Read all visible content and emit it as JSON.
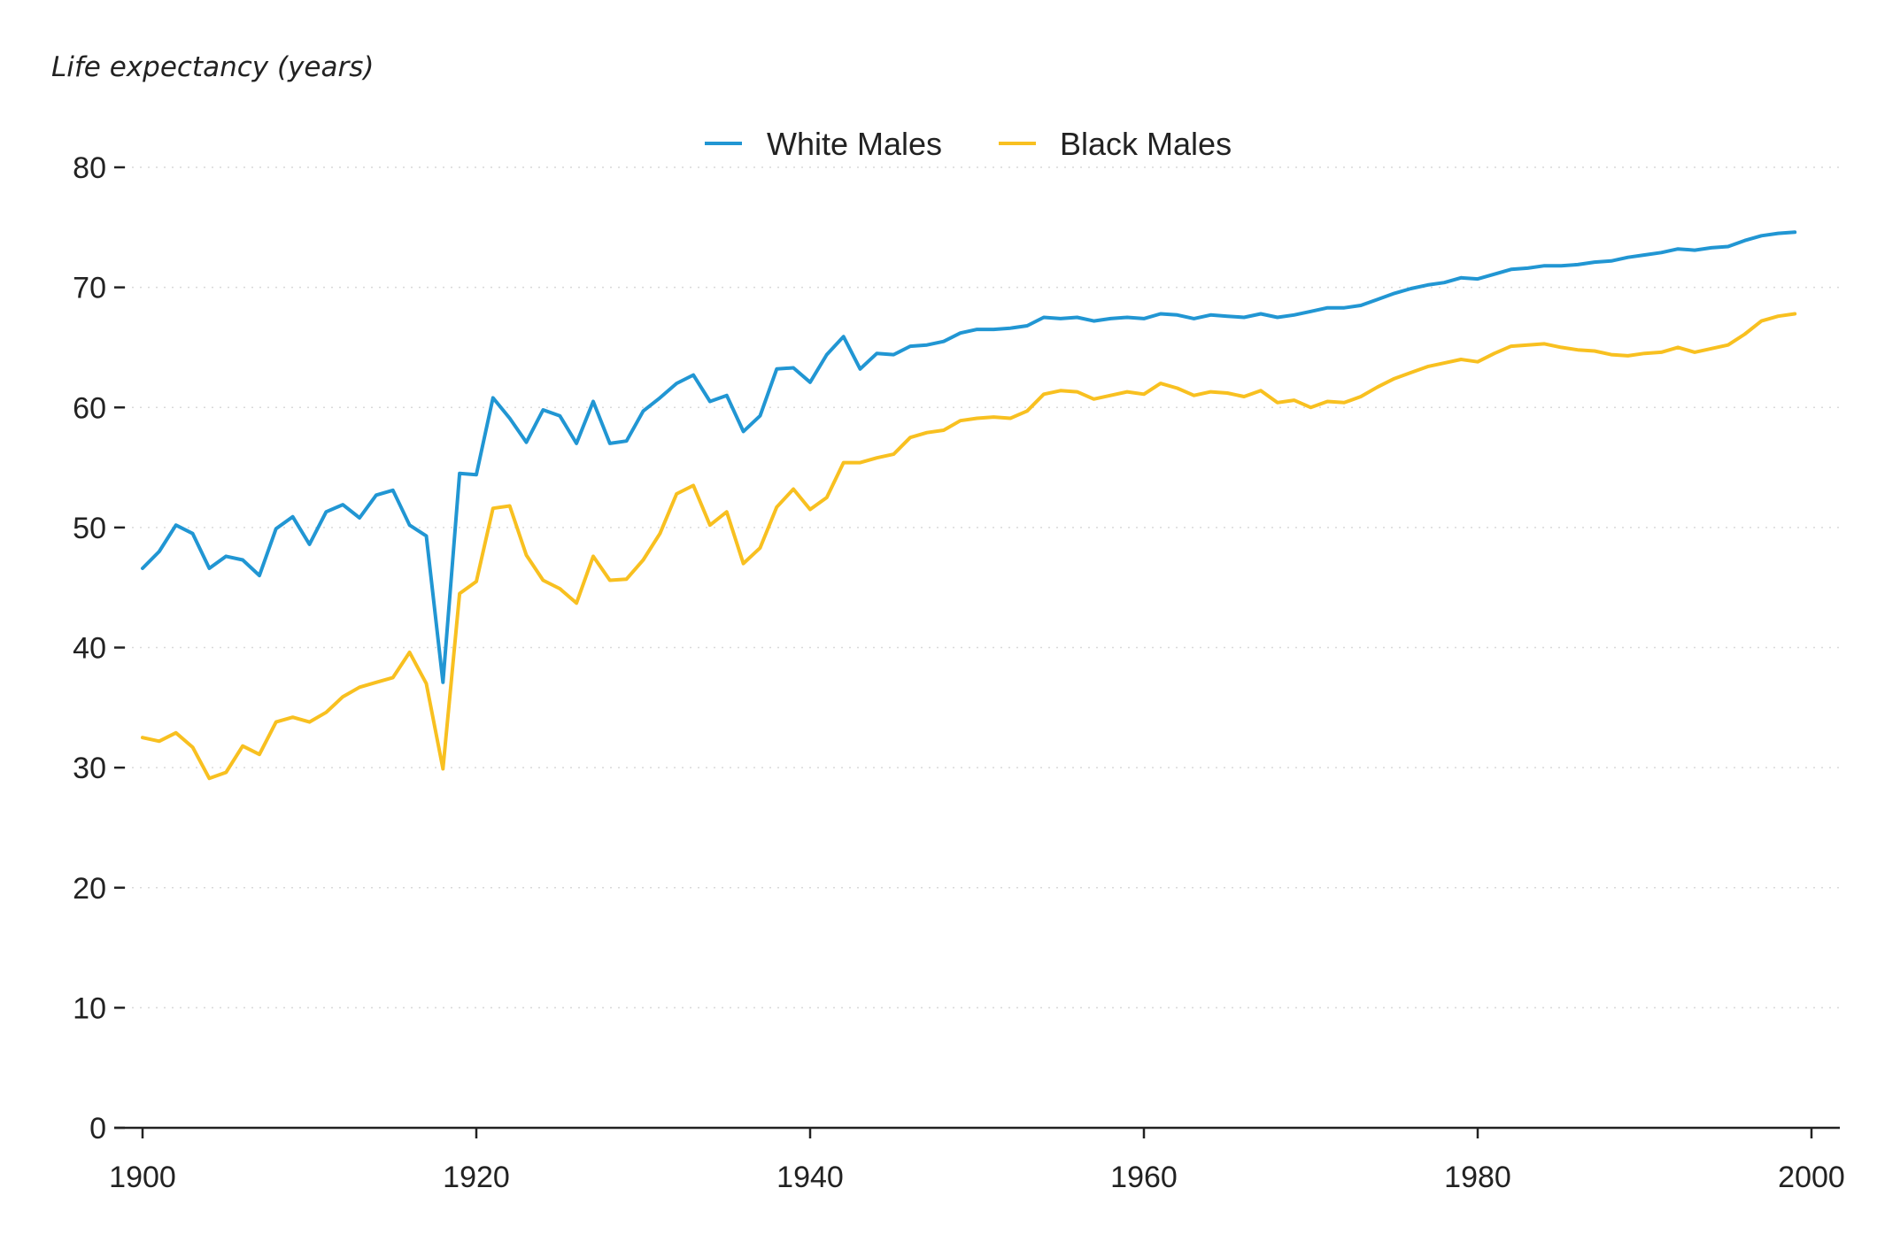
{
  "chart_data": {
    "type": "line",
    "ylabel": "Life expectancy (years)",
    "xlabel": "",
    "xlim": [
      1900,
      2000
    ],
    "ylim": [
      0,
      80
    ],
    "x_ticks": [
      1900,
      1920,
      1940,
      1960,
      1980,
      2000
    ],
    "y_ticks": [
      0,
      10,
      20,
      30,
      40,
      50,
      60,
      70,
      80
    ],
    "grid": "horizontal-dotted",
    "legend": "top-center",
    "x_start": 1900,
    "series": [
      {
        "name": "White Males",
        "color": "#2196d3",
        "values": [
          46.6,
          48.0,
          50.2,
          49.5,
          46.6,
          47.6,
          47.3,
          46.0,
          49.9,
          50.9,
          48.6,
          51.3,
          51.9,
          50.8,
          52.7,
          53.1,
          50.2,
          49.3,
          37.1,
          54.5,
          54.4,
          60.8,
          59.1,
          57.1,
          59.8,
          59.3,
          57.0,
          60.5,
          57.0,
          57.2,
          59.7,
          60.8,
          62.0,
          62.7,
          60.5,
          61.0,
          58.0,
          59.3,
          63.2,
          63.3,
          62.1,
          64.4,
          65.9,
          63.2,
          64.5,
          64.4,
          65.1,
          65.2,
          65.5,
          66.2,
          66.5,
          66.5,
          66.6,
          66.8,
          67.5,
          67.4,
          67.5,
          67.2,
          67.4,
          67.5,
          67.4,
          67.8,
          67.7,
          67.4,
          67.7,
          67.6,
          67.5,
          67.8,
          67.5,
          67.7,
          68.0,
          68.3,
          68.3,
          68.5,
          69.0,
          69.5,
          69.9,
          70.2,
          70.4,
          70.8,
          70.7,
          71.1,
          71.5,
          71.6,
          71.8,
          71.8,
          71.9,
          72.1,
          72.2,
          72.5,
          72.7,
          72.9,
          73.2,
          73.1,
          73.3,
          73.4,
          73.9,
          74.3,
          74.5,
          74.6
        ]
      },
      {
        "name": "Black Males",
        "color": "#f8c020",
        "values": [
          32.5,
          32.2,
          32.9,
          31.7,
          29.1,
          29.6,
          31.8,
          31.1,
          33.8,
          34.2,
          33.8,
          34.6,
          35.9,
          36.7,
          37.1,
          37.5,
          39.6,
          37.0,
          29.9,
          44.5,
          45.5,
          51.6,
          51.8,
          47.7,
          45.6,
          44.9,
          43.7,
          47.6,
          45.6,
          45.7,
          47.3,
          49.5,
          52.8,
          53.5,
          50.2,
          51.3,
          47.0,
          48.3,
          51.7,
          53.2,
          51.5,
          52.5,
          55.4,
          55.4,
          55.8,
          56.1,
          57.5,
          57.9,
          58.1,
          58.9,
          59.1,
          59.2,
          59.1,
          59.7,
          61.1,
          61.4,
          61.3,
          60.7,
          61.0,
          61.3,
          61.1,
          62.0,
          61.6,
          61.0,
          61.3,
          61.2,
          60.9,
          61.4,
          60.4,
          60.6,
          60.0,
          60.5,
          60.4,
          60.9,
          61.7,
          62.4,
          62.9,
          63.4,
          63.7,
          64.0,
          63.8,
          64.5,
          65.1,
          65.2,
          65.3,
          65.0,
          64.8,
          64.7,
          64.4,
          64.3,
          64.5,
          64.6,
          65.0,
          64.6,
          64.9,
          65.2,
          66.1,
          67.2,
          67.6,
          67.8
        ]
      }
    ]
  }
}
